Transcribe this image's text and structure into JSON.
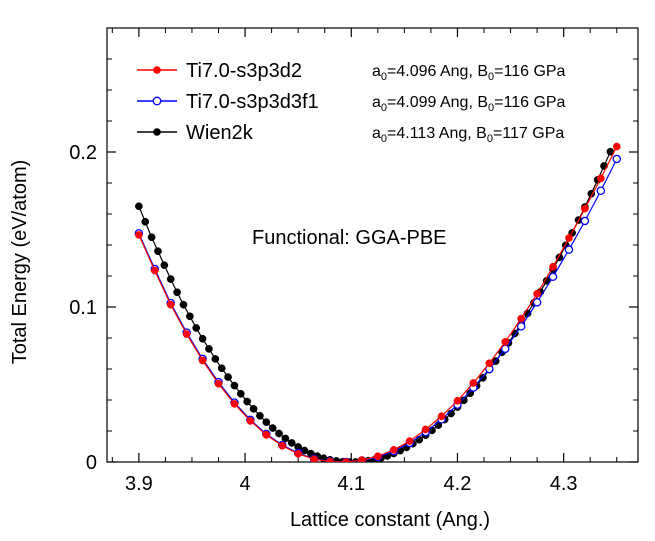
{
  "chart_data": {
    "type": "scatter",
    "xlabel": "Lattice constant (Ang.)",
    "ylabel": "Total Energy (eV/atom)",
    "xlim": [
      3.87,
      4.37
    ],
    "ylim": [
      0,
      0.28
    ],
    "xticks": [
      3.9,
      4.0,
      4.1,
      4.2,
      4.3
    ],
    "xtick_labels": [
      "3.9",
      "4",
      "4.1",
      "4.2",
      "4.3"
    ],
    "yticks": [
      0,
      0.1,
      0.2
    ],
    "ytick_labels": [
      "0",
      "0.1",
      "0.2"
    ],
    "annotation": "Functional: GGA-PBE",
    "legend_position": "top-left",
    "series": [
      {
        "name": "Ti7.0-s3p3d2",
        "color": "#ff0000",
        "marker": "filled-circle",
        "params": {
          "a0_label": "a",
          "a0_sub": "0",
          "a0_value": "=4.096 Ang, B",
          "b0_sub": "0",
          "b0_value": "=116 GPa"
        },
        "x": [
          3.9,
          3.915,
          3.93,
          3.945,
          3.96,
          3.975,
          3.99,
          4.005,
          4.02,
          4.035,
          4.05,
          4.065,
          4.08,
          4.095,
          4.11,
          4.125,
          4.14,
          4.155,
          4.17,
          4.185,
          4.2,
          4.215,
          4.23,
          4.245,
          4.26,
          4.275,
          4.29,
          4.305,
          4.32,
          4.335,
          4.35
        ],
        "y": [
          0.1465,
          0.1235,
          0.1015,
          0.0825,
          0.0655,
          0.0505,
          0.0375,
          0.0265,
          0.0175,
          0.0105,
          0.0053,
          0.0018,
          0.0003,
          0.0,
          0.0012,
          0.0037,
          0.0078,
          0.0135,
          0.021,
          0.0295,
          0.0395,
          0.051,
          0.0637,
          0.0775,
          0.0925,
          0.1085,
          0.126,
          0.1445,
          0.1635,
          0.183,
          0.2035
        ]
      },
      {
        "name": "Ti7.0-s3p3d3f1",
        "color": "#0000ff",
        "marker": "open-circle",
        "params": {
          "a0_label": "a",
          "a0_sub": "0",
          "a0_value": "=4.099 Ang, B",
          "b0_sub": "0",
          "b0_value": "=116 GPa"
        },
        "x": [
          3.9,
          3.915,
          3.93,
          3.945,
          3.96,
          3.975,
          3.99,
          4.005,
          4.02,
          4.035,
          4.05,
          4.065,
          4.08,
          4.095,
          4.11,
          4.125,
          4.14,
          4.155,
          4.17,
          4.185,
          4.2,
          4.215,
          4.23,
          4.245,
          4.26,
          4.275,
          4.29,
          4.305,
          4.32,
          4.335,
          4.35
        ],
        "y": [
          0.1475,
          0.1245,
          0.1025,
          0.0835,
          0.0665,
          0.0515,
          0.0383,
          0.0272,
          0.0181,
          0.011,
          0.0057,
          0.002,
          0.0004,
          0.0,
          0.001,
          0.0032,
          0.007,
          0.0123,
          0.0193,
          0.0275,
          0.037,
          0.048,
          0.06,
          0.073,
          0.0875,
          0.103,
          0.1195,
          0.137,
          0.1555,
          0.175,
          0.1955
        ]
      },
      {
        "name": "Wien2k",
        "color": "#000000",
        "marker": "filled-circle",
        "params": {
          "a0_label": "a",
          "a0_sub": "0",
          "a0_value": "=4.113 Ang, B",
          "b0_sub": "0",
          "b0_value": "=117 GPa"
        },
        "x": [
          3.9,
          3.906,
          3.912,
          3.918,
          3.924,
          3.93,
          3.936,
          3.942,
          3.948,
          3.954,
          3.96,
          3.966,
          3.972,
          3.978,
          3.984,
          3.99,
          3.996,
          4.002,
          4.008,
          4.014,
          4.02,
          4.026,
          4.032,
          4.038,
          4.044,
          4.05,
          4.056,
          4.062,
          4.068,
          4.074,
          4.08,
          4.086,
          4.092,
          4.098,
          4.104,
          4.11,
          4.116,
          4.122,
          4.128,
          4.134,
          4.14,
          4.146,
          4.152,
          4.158,
          4.164,
          4.17,
          4.176,
          4.182,
          4.188,
          4.194,
          4.2,
          4.206,
          4.212,
          4.218,
          4.224,
          4.23,
          4.236,
          4.242,
          4.248,
          4.254,
          4.26,
          4.266,
          4.272,
          4.278,
          4.284,
          4.29,
          4.296,
          4.302,
          4.308,
          4.314,
          4.32,
          4.326,
          4.332,
          4.338,
          4.344
        ],
        "y": [
          0.165,
          0.155,
          0.145,
          0.136,
          0.127,
          0.118,
          0.1095,
          0.1015,
          0.094,
          0.0865,
          0.0795,
          0.073,
          0.0665,
          0.0605,
          0.0548,
          0.0493,
          0.044,
          0.039,
          0.0343,
          0.0298,
          0.0257,
          0.0219,
          0.0184,
          0.0152,
          0.0123,
          0.0097,
          0.0074,
          0.0054,
          0.0038,
          0.0024,
          0.0014,
          0.0007,
          0.0002,
          0.0,
          0.0,
          0.0003,
          0.0008,
          0.0015,
          0.0026,
          0.0039,
          0.0055,
          0.0073,
          0.0094,
          0.0118,
          0.0144,
          0.0173,
          0.0204,
          0.0238,
          0.0274,
          0.0313,
          0.0354,
          0.0398,
          0.0444,
          0.0492,
          0.0543,
          0.0596,
          0.0651,
          0.0708,
          0.0768,
          0.0829,
          0.0893,
          0.0959,
          0.1027,
          0.1097,
          0.1169,
          0.1243,
          0.132,
          0.1398,
          0.1478,
          0.1561,
          0.1645,
          0.1731,
          0.182,
          0.191,
          0.2002
        ]
      }
    ]
  }
}
